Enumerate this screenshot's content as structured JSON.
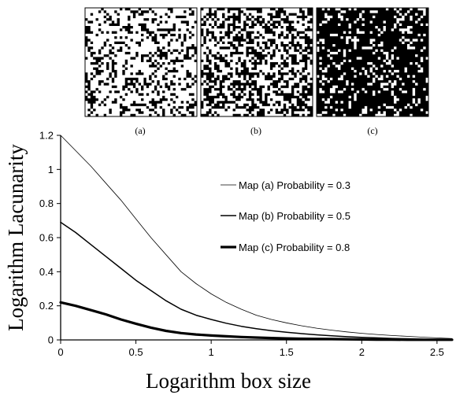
{
  "panels": [
    {
      "label": "(a)",
      "probability": 0.3
    },
    {
      "label": "(b)",
      "probability": 0.5
    },
    {
      "label": "(c)",
      "probability": 0.8
    }
  ],
  "chart_data": {
    "type": "line",
    "xlabel": "Logarithm box size",
    "ylabel": "Logarithm Lacunarity",
    "xlim": [
      0,
      2.6
    ],
    "ylim": [
      0,
      1.2
    ],
    "xticks": [
      "0",
      "0.5",
      "1",
      "1.5",
      "2",
      "2.5"
    ],
    "yticks": [
      "0",
      "0.2",
      "0.4",
      "0.6",
      "0.8",
      "1",
      "1.2"
    ],
    "grid": false,
    "legend_position": "right",
    "series": [
      {
        "name": "Map (a) Probability = 0.3",
        "color": "#000000",
        "weight": "thin",
        "x": [
          0,
          0.1,
          0.2,
          0.3,
          0.4,
          0.5,
          0.6,
          0.7,
          0.8,
          0.9,
          1.0,
          1.1,
          1.2,
          1.3,
          1.4,
          1.5,
          1.6,
          1.7,
          1.8,
          1.9,
          2.0,
          2.1,
          2.2,
          2.3,
          2.4,
          2.5,
          2.6
        ],
        "y": [
          1.2,
          1.11,
          1.02,
          0.92,
          0.82,
          0.71,
          0.6,
          0.5,
          0.4,
          0.33,
          0.27,
          0.22,
          0.18,
          0.145,
          0.12,
          0.1,
          0.083,
          0.069,
          0.057,
          0.047,
          0.039,
          0.032,
          0.026,
          0.021,
          0.016,
          0.012,
          0.008
        ]
      },
      {
        "name": "Map (b) Probability = 0.5",
        "color": "#000000",
        "weight": "medium",
        "x": [
          0,
          0.1,
          0.2,
          0.3,
          0.4,
          0.5,
          0.6,
          0.7,
          0.8,
          0.9,
          1.0,
          1.1,
          1.2,
          1.3,
          1.4,
          1.5,
          1.6,
          1.7,
          1.8,
          1.9,
          2.0,
          2.1,
          2.2,
          2.3,
          2.4,
          2.5,
          2.6
        ],
        "y": [
          0.69,
          0.63,
          0.56,
          0.49,
          0.42,
          0.35,
          0.29,
          0.23,
          0.18,
          0.145,
          0.12,
          0.098,
          0.08,
          0.066,
          0.054,
          0.045,
          0.037,
          0.03,
          0.024,
          0.019,
          0.015,
          0.012,
          0.009,
          0.007,
          0.005,
          0.003,
          0.002
        ]
      },
      {
        "name": "Map (c) Probability = 0.8",
        "color": "#000000",
        "weight": "thick",
        "x": [
          0,
          0.1,
          0.2,
          0.3,
          0.4,
          0.5,
          0.6,
          0.7,
          0.8,
          0.9,
          1.0,
          1.1,
          1.2,
          1.3,
          1.4,
          1.5,
          1.6,
          1.7,
          1.8,
          1.9,
          2.0,
          2.1,
          2.2,
          2.3,
          2.4,
          2.5,
          2.6
        ],
        "y": [
          0.22,
          0.2,
          0.175,
          0.15,
          0.12,
          0.095,
          0.072,
          0.053,
          0.04,
          0.032,
          0.026,
          0.021,
          0.017,
          0.014,
          0.011,
          0.009,
          0.007,
          0.006,
          0.005,
          0.004,
          0.003,
          0.002,
          0.002,
          0.001,
          0.001,
          0.001,
          0.001
        ]
      }
    ]
  }
}
